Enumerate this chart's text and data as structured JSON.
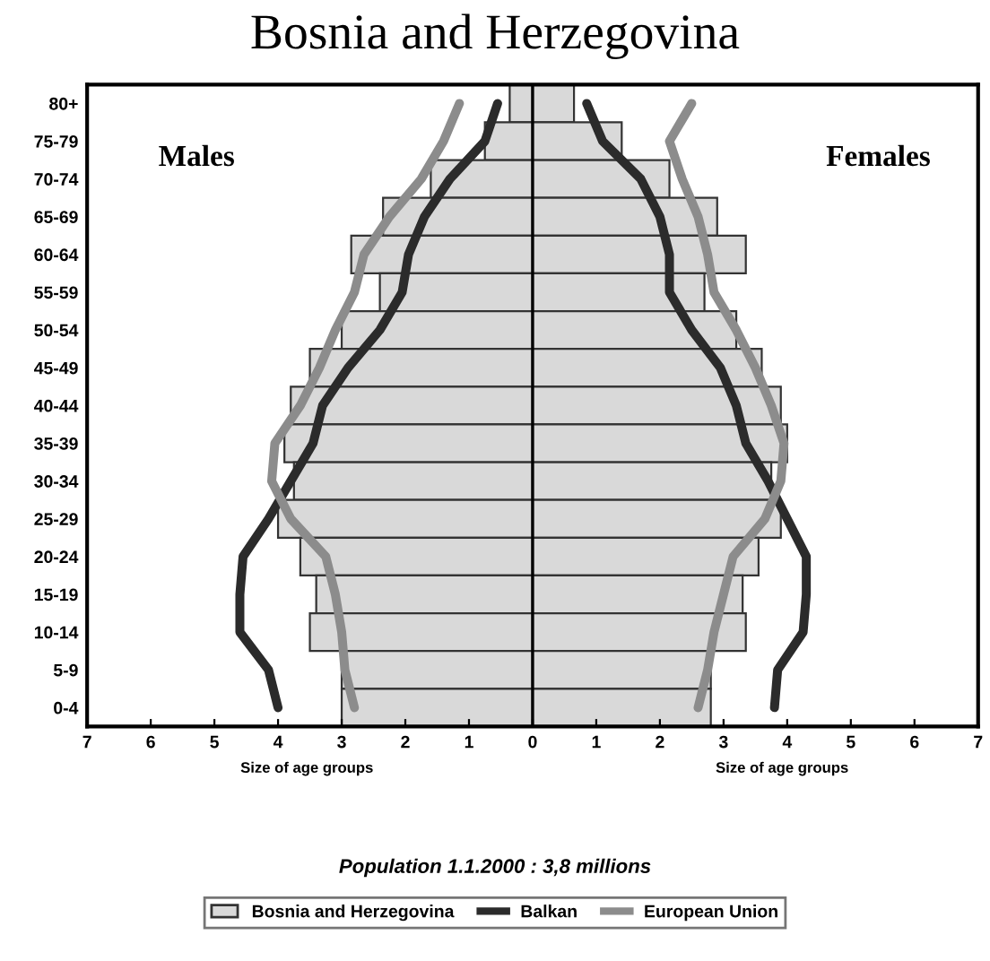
{
  "chart_data": {
    "type": "bar",
    "orientation": "horizontal",
    "title": "Bosnia and Herzegovina",
    "categories": [
      "80+",
      "75-79",
      "70-74",
      "65-69",
      "60-64",
      "55-59",
      "50-54",
      "45-49",
      "40-44",
      "35-39",
      "30-34",
      "25-29",
      "20-24",
      "15-19",
      "10-14",
      "5-9",
      "0-4"
    ],
    "series": [
      {
        "name": "Bosnia and Herzegovina",
        "color": "#d9d9d9",
        "values": [
          -0.36,
          -0.75,
          -1.6,
          -2.35,
          -2.85,
          -2.4,
          -3.0,
          -3.5,
          -3.8,
          -3.9,
          -3.75,
          -4.0,
          -3.65,
          -3.4,
          -3.5,
          -3.0,
          -3.0
        ]
      },
      {
        "color": "#d9d9d9",
        "values": [
          0.65,
          1.4,
          2.15,
          2.9,
          3.35,
          2.7,
          3.2,
          3.6,
          3.9,
          4.0,
          3.75,
          3.9,
          3.55,
          3.3,
          3.35,
          2.8,
          2.8
        ]
      },
      {
        "name": "Balkan",
        "type": "line",
        "color": "#2b2b2b",
        "values": [
          -0.55,
          -0.75,
          -1.3,
          -1.7,
          -1.95,
          -2.05,
          -2.4,
          -2.9,
          -3.3,
          -3.45,
          -3.8,
          -4.15,
          -4.55,
          -4.6,
          -4.6,
          -4.15,
          -4.0
        ]
      },
      {
        "type": "line",
        "color": "#2b2b2b",
        "values": [
          0.85,
          1.1,
          1.7,
          2.0,
          2.15,
          2.15,
          2.5,
          2.95,
          3.2,
          3.35,
          3.7,
          4.0,
          4.3,
          4.3,
          4.25,
          3.85,
          3.8
        ]
      },
      {
        "name": "European Union",
        "type": "line",
        "color": "#8c8c8c",
        "values": [
          -1.15,
          -1.4,
          -1.75,
          -2.25,
          -2.65,
          -2.8,
          -3.1,
          -3.35,
          -3.65,
          -4.05,
          -4.1,
          -3.8,
          -3.25,
          -3.1,
          -3.0,
          -2.95,
          -2.8
        ]
      },
      {
        "type": "line",
        "color": "#8c8c8c",
        "values": [
          2.5,
          2.15,
          2.35,
          2.6,
          2.75,
          2.85,
          3.2,
          3.5,
          3.75,
          3.95,
          3.9,
          3.65,
          3.15,
          3.0,
          2.85,
          2.75,
          2.6
        ]
      }
    ],
    "xlim": [
      -7,
      7
    ],
    "xticks": [
      {
        "value": -7,
        "label": "7"
      },
      {
        "value": -6,
        "label": "6"
      },
      {
        "value": -5,
        "label": "5"
      },
      {
        "value": -4,
        "label": "4"
      },
      {
        "value": -3,
        "label": "3"
      },
      {
        "value": -2,
        "label": "2"
      },
      {
        "value": -1,
        "label": "1"
      },
      0,
      1,
      2,
      3,
      4,
      5,
      6,
      7
    ],
    "ref_lines": [
      {
        "axis": "x",
        "value": 0,
        "color": "#000000"
      }
    ],
    "annotations": [
      "Males",
      "Females",
      "Size of age groups",
      "Size of age groups",
      "Population 1.1.2000 : 3,8 millions"
    ],
    "legend": "bottom",
    "stacked": true,
    "grid": false,
    "marker": "none",
    "line_style": "solid"
  }
}
